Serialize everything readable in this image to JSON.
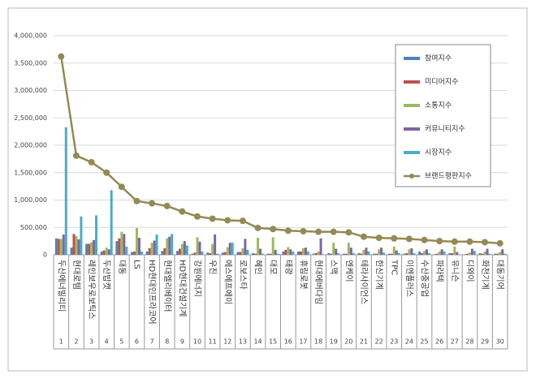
{
  "chart_data": {
    "type": "bar",
    "categories": [
      "두산에너빌리티",
      "현대로템",
      "레인보우로보틱스",
      "두산밥캣",
      "대동",
      "LS",
      "HD현대인프라코어",
      "현대엘리베이터",
      "HD현대건설기계",
      "강원에너지",
      "우진",
      "에스에프에이",
      "로보스타",
      "혜인",
      "대모",
      "태광",
      "휴림로봇",
      "현대에버다임",
      "스맥",
      "엔케이",
      "테라사이언스",
      "한신기계",
      "TPC",
      "이엔플러스",
      "수산중공업",
      "파라텍",
      "유니슨",
      "디와이",
      "화천기계",
      "대동기어"
    ],
    "ranks": [
      1,
      2,
      3,
      4,
      5,
      6,
      7,
      8,
      9,
      10,
      11,
      12,
      13,
      14,
      15,
      16,
      17,
      18,
      19,
      20,
      21,
      22,
      23,
      24,
      25,
      26,
      27,
      28,
      29,
      30
    ],
    "series": [
      {
        "name": "참여지수",
        "color": "#4f81bd",
        "values": [
          300000,
          130000,
          200000,
          60000,
          250000,
          50000,
          60000,
          70000,
          70000,
          20000,
          40000,
          40000,
          50000,
          30000,
          20000,
          60000,
          60000,
          20000,
          30000,
          20000,
          30000,
          20000,
          20000,
          20000,
          60000,
          10000,
          30000,
          10000,
          30000,
          20000
        ]
      },
      {
        "name": "미디어지수",
        "color": "#c0504d",
        "values": [
          290000,
          380000,
          200000,
          80000,
          300000,
          60000,
          120000,
          120000,
          110000,
          40000,
          30000,
          50000,
          50000,
          20000,
          20000,
          90000,
          60000,
          30000,
          20000,
          20000,
          20000,
          20000,
          20000,
          30000,
          30000,
          20000,
          30000,
          20000,
          20000,
          20000
        ]
      },
      {
        "name": "소통지수",
        "color": "#9bbb59",
        "values": [
          290000,
          340000,
          230000,
          130000,
          420000,
          490000,
          220000,
          300000,
          200000,
          320000,
          200000,
          140000,
          120000,
          310000,
          320000,
          140000,
          120000,
          60000,
          220000,
          220000,
          90000,
          100000,
          150000,
          100000,
          70000,
          60000,
          150000,
          40000,
          60000,
          50000
        ]
      },
      {
        "name": "커뮤니티지수",
        "color": "#8064a2",
        "values": [
          370000,
          280000,
          270000,
          100000,
          380000,
          310000,
          260000,
          330000,
          250000,
          240000,
          370000,
          220000,
          290000,
          110000,
          90000,
          100000,
          130000,
          300000,
          110000,
          130000,
          130000,
          130000,
          80000,
          120000,
          100000,
          100000,
          50000,
          110000,
          110000,
          100000
        ]
      },
      {
        "name": "시장지수",
        "color": "#4bacc6",
        "values": [
          2330000,
          700000,
          720000,
          1180000,
          150000,
          60000,
          370000,
          380000,
          170000,
          60000,
          20000,
          220000,
          90000,
          20000,
          20000,
          60000,
          60000,
          10000,
          30000,
          30000,
          60000,
          40000,
          30000,
          30000,
          30000,
          60000,
          10000,
          70000,
          20000,
          20000
        ]
      },
      {
        "name": "브랜드평판지수",
        "color": "#948a54",
        "type": "line",
        "values": [
          3620000,
          1810000,
          1690000,
          1500000,
          1240000,
          980000,
          940000,
          890000,
          790000,
          700000,
          660000,
          630000,
          620000,
          490000,
          470000,
          440000,
          430000,
          420000,
          420000,
          410000,
          330000,
          310000,
          300000,
          290000,
          270000,
          250000,
          240000,
          240000,
          230000,
          210000
        ]
      }
    ],
    "ylim": [
      0,
      4000000
    ],
    "yticks": [
      0,
      {
        "value": 500000,
        "label": "500,000"
      },
      {
        "value": 1000000,
        "label": "1,000,000"
      },
      {
        "value": 1500000,
        "label": "1,500,000"
      },
      {
        "value": 2000000,
        "label": "2,000,000"
      },
      {
        "value": 2500000,
        "label": "2,500,000"
      },
      {
        "value": 3000000,
        "label": "3,000,000"
      },
      {
        "value": 3500000,
        "label": "3,500,000"
      },
      {
        "value": 4000000,
        "label": "4,000,000"
      }
    ],
    "grid": true,
    "legend": "top-right"
  }
}
